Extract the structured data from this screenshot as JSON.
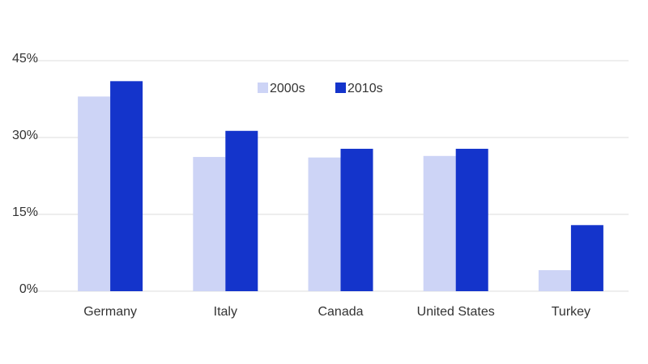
{
  "chart_data": {
    "type": "bar",
    "categories": [
      "Germany",
      "Italy",
      "Canada",
      "United States",
      "Turkey"
    ],
    "series": [
      {
        "name": "2000s",
        "color": "#cdd4f6",
        "values": [
          38,
          26.2,
          26.1,
          26.4,
          4.1
        ]
      },
      {
        "name": "2010s",
        "color": "#1434cb",
        "values": [
          41,
          31.3,
          27.8,
          27.8,
          12.9
        ]
      }
    ],
    "ylim": [
      0,
      45
    ],
    "yticks": [
      {
        "value": 0,
        "label": "0%"
      },
      {
        "value": 15,
        "label": "15%"
      },
      {
        "value": 30,
        "label": "30%"
      },
      {
        "value": 45,
        "label": "45%"
      }
    ],
    "grid": true,
    "legend": "top"
  }
}
